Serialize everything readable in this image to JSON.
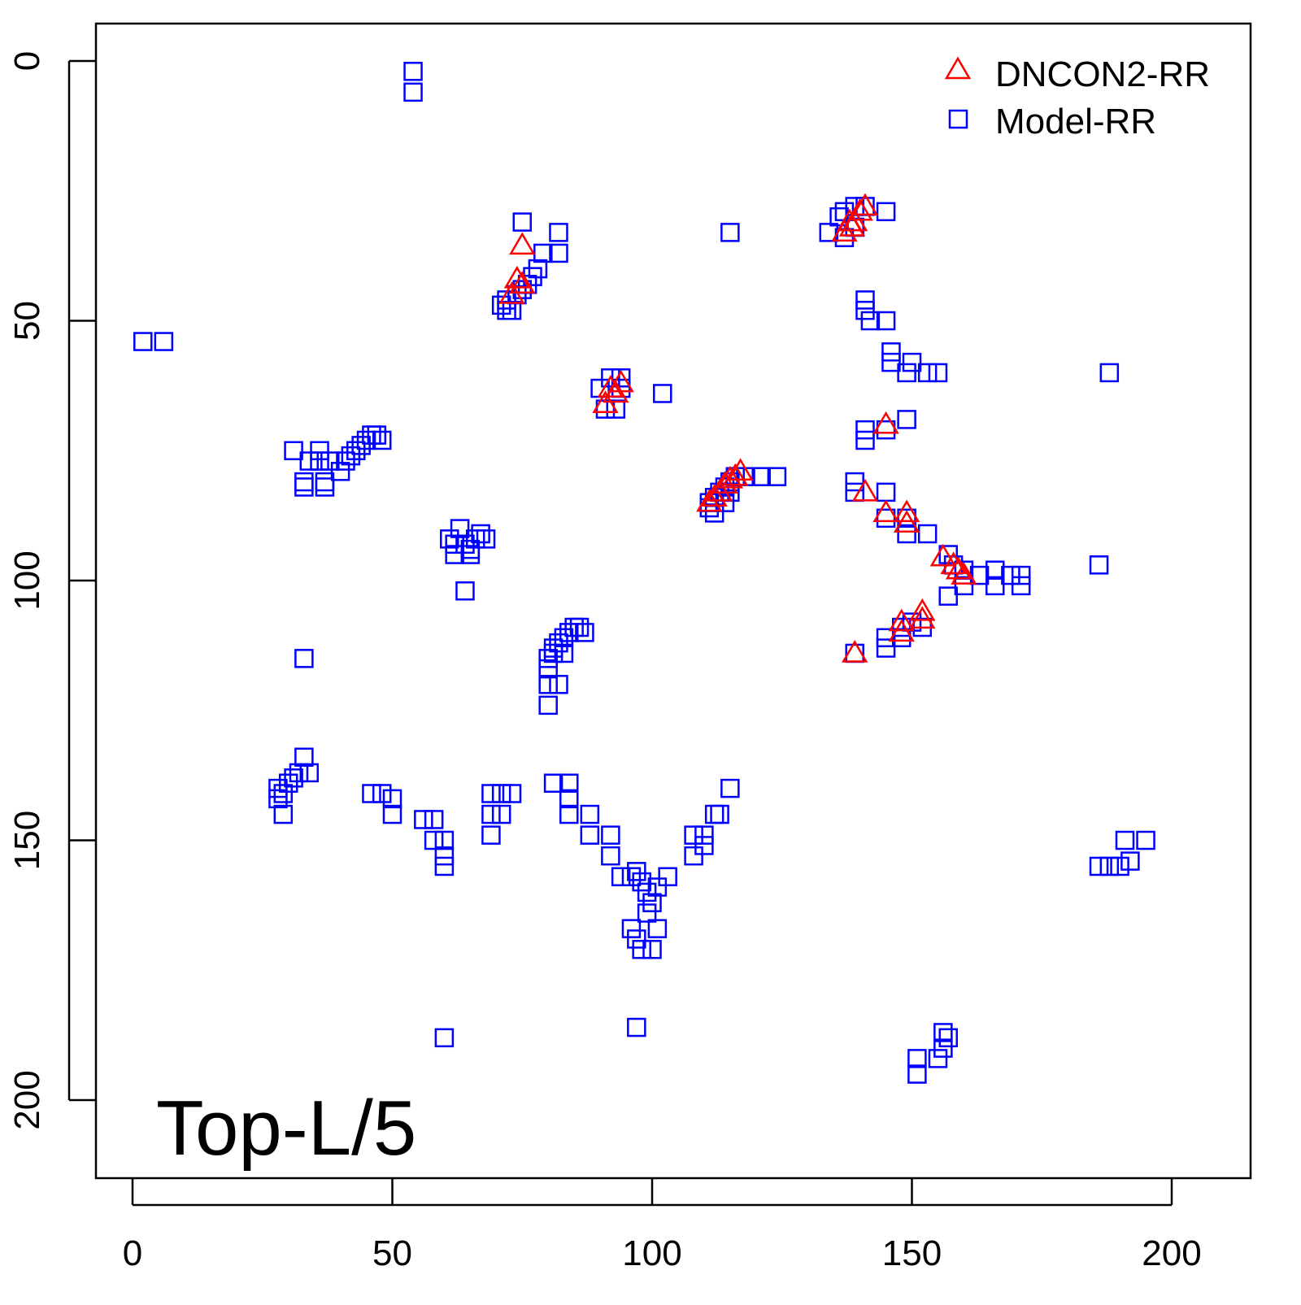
{
  "chart_data": {
    "type": "scatter",
    "title": "",
    "annotation": "Top-L/5",
    "xlabel": "",
    "ylabel": "",
    "xlim": [
      -7,
      215
    ],
    "ylim": [
      215,
      -7
    ],
    "y_inverted": true,
    "xticks": [
      0,
      50,
      100,
      150,
      200
    ],
    "yticks": [
      0,
      50,
      100,
      150,
      200
    ],
    "grid": false,
    "legend_position": "top-right",
    "series": [
      {
        "name": "DNCON2-RR",
        "marker": "triangle",
        "color": "#ff0000",
        "points": [
          [
            75,
            35.5
          ],
          [
            74,
            42
          ],
          [
            73,
            45
          ],
          [
            75,
            43
          ],
          [
            137,
            33
          ],
          [
            138,
            31
          ],
          [
            140,
            29
          ],
          [
            141,
            28
          ],
          [
            139,
            31
          ],
          [
            138.5,
            32
          ],
          [
            91,
            66
          ],
          [
            92,
            63
          ],
          [
            93,
            64
          ],
          [
            94,
            62
          ],
          [
            145,
            70
          ],
          [
            111,
            85
          ],
          [
            112,
            84
          ],
          [
            113,
            83
          ],
          [
            114,
            81.5
          ],
          [
            115,
            80.5
          ],
          [
            116,
            80
          ],
          [
            117,
            79
          ],
          [
            141,
            83
          ],
          [
            145,
            87
          ],
          [
            149,
            87
          ],
          [
            149,
            89
          ],
          [
            156,
            95.5
          ],
          [
            158,
            97
          ],
          [
            159,
            98
          ],
          [
            160,
            99
          ],
          [
            148,
            108
          ],
          [
            148,
            110
          ],
          [
            152,
            106
          ],
          [
            152,
            107.5
          ],
          [
            139,
            114
          ]
        ]
      },
      {
        "name": "Model-RR",
        "marker": "square",
        "color": "#0000ff",
        "points": [
          [
            54,
            2
          ],
          [
            54,
            6
          ],
          [
            2,
            54
          ],
          [
            6,
            54
          ],
          [
            75,
            31
          ],
          [
            82,
            33
          ],
          [
            82,
            37
          ],
          [
            79,
            37
          ],
          [
            78,
            40
          ],
          [
            77,
            41.5
          ],
          [
            76,
            43
          ],
          [
            75,
            44
          ],
          [
            74,
            45
          ],
          [
            72,
            46
          ],
          [
            71,
            47
          ],
          [
            72,
            48
          ],
          [
            73,
            48
          ],
          [
            115,
            33
          ],
          [
            134,
            33
          ],
          [
            136,
            30
          ],
          [
            137,
            29
          ],
          [
            139,
            28
          ],
          [
            141,
            28
          ],
          [
            145,
            29
          ],
          [
            137,
            34
          ],
          [
            139,
            32
          ],
          [
            141,
            46
          ],
          [
            141,
            48
          ],
          [
            142,
            50
          ],
          [
            145,
            50
          ],
          [
            146,
            56
          ],
          [
            146,
            58
          ],
          [
            150,
            58
          ],
          [
            149,
            60
          ],
          [
            153,
            60
          ],
          [
            155,
            60
          ],
          [
            188,
            60
          ],
          [
            90,
            63
          ],
          [
            92,
            61
          ],
          [
            94,
            61
          ],
          [
            94,
            63
          ],
          [
            93,
            67
          ],
          [
            91,
            67
          ],
          [
            102,
            64
          ],
          [
            141,
            71
          ],
          [
            141,
            73
          ],
          [
            145,
            71
          ],
          [
            149,
            69
          ],
          [
            31,
            75
          ],
          [
            36,
            75
          ],
          [
            36,
            77
          ],
          [
            34,
            77
          ],
          [
            38,
            77
          ],
          [
            40,
            79
          ],
          [
            41,
            77
          ],
          [
            42,
            76
          ],
          [
            43,
            75
          ],
          [
            44,
            74
          ],
          [
            45,
            73
          ],
          [
            46,
            72
          ],
          [
            47,
            72
          ],
          [
            48,
            73
          ],
          [
            33,
            81
          ],
          [
            37,
            81
          ],
          [
            33,
            82
          ],
          [
            37,
            82
          ],
          [
            139,
            81
          ],
          [
            139,
            83
          ],
          [
            145,
            83
          ],
          [
            111,
            86
          ],
          [
            111,
            85
          ],
          [
            112,
            84
          ],
          [
            113,
            83
          ],
          [
            114,
            82
          ],
          [
            115,
            81
          ],
          [
            116,
            80
          ],
          [
            118,
            80
          ],
          [
            121,
            80
          ],
          [
            124,
            80
          ],
          [
            112,
            87
          ],
          [
            114,
            85
          ],
          [
            115,
            83
          ],
          [
            145,
            88
          ],
          [
            149,
            88
          ],
          [
            149,
            91
          ],
          [
            153,
            91
          ],
          [
            61,
            92
          ],
          [
            62,
            93
          ],
          [
            63,
            90
          ],
          [
            64,
            93
          ],
          [
            65,
            94
          ],
          [
            66,
            92
          ],
          [
            67,
            91
          ],
          [
            68,
            92
          ],
          [
            62,
            95
          ],
          [
            65,
            95
          ],
          [
            64,
            102
          ],
          [
            157,
            95
          ],
          [
            158,
            97
          ],
          [
            160,
            98
          ],
          [
            163,
            99
          ],
          [
            166,
            98
          ],
          [
            169,
            99
          ],
          [
            171,
            99
          ],
          [
            171,
            101
          ],
          [
            166,
            101
          ],
          [
            160,
            101
          ],
          [
            157,
            103
          ],
          [
            186,
            97
          ],
          [
            80,
            115
          ],
          [
            80,
            117
          ],
          [
            81,
            113
          ],
          [
            82,
            112
          ],
          [
            83,
            111
          ],
          [
            84,
            110
          ],
          [
            85,
            109
          ],
          [
            86,
            109
          ],
          [
            87,
            110
          ],
          [
            80,
            120
          ],
          [
            82,
            120
          ],
          [
            80,
            124
          ],
          [
            81,
            114
          ],
          [
            83,
            114
          ],
          [
            33,
            115
          ],
          [
            145,
            111
          ],
          [
            145,
            113
          ],
          [
            148,
            109
          ],
          [
            148,
            111
          ],
          [
            150,
            108
          ],
          [
            152,
            109
          ],
          [
            139,
            114
          ],
          [
            28,
            140
          ],
          [
            29,
            141
          ],
          [
            30,
            139
          ],
          [
            31,
            138
          ],
          [
            32,
            137
          ],
          [
            33,
            134
          ],
          [
            28,
            142
          ],
          [
            29,
            145
          ],
          [
            34,
            137
          ],
          [
            46,
            141
          ],
          [
            48,
            141
          ],
          [
            50,
            142
          ],
          [
            50,
            145
          ],
          [
            56,
            146
          ],
          [
            58,
            146
          ],
          [
            58,
            150
          ],
          [
            60,
            150
          ],
          [
            60,
            153
          ],
          [
            60,
            155
          ],
          [
            60,
            188
          ],
          [
            69,
            141
          ],
          [
            71,
            141
          ],
          [
            73,
            141
          ],
          [
            69,
            145
          ],
          [
            71,
            145
          ],
          [
            69,
            149
          ],
          [
            81,
            139
          ],
          [
            84,
            139
          ],
          [
            84,
            142
          ],
          [
            84,
            145
          ],
          [
            88,
            145
          ],
          [
            88,
            149
          ],
          [
            92,
            149
          ],
          [
            92,
            153
          ],
          [
            94,
            157
          ],
          [
            96,
            157
          ],
          [
            97,
            156
          ],
          [
            98,
            158
          ],
          [
            99,
            160
          ],
          [
            100,
            162
          ],
          [
            99,
            164
          ],
          [
            101,
            167
          ],
          [
            96,
            167
          ],
          [
            97,
            169
          ],
          [
            98,
            171
          ],
          [
            100,
            171
          ],
          [
            103,
            157
          ],
          [
            101,
            159
          ],
          [
            108,
            149
          ],
          [
            108,
            153
          ],
          [
            110,
            151
          ],
          [
            110,
            149
          ],
          [
            112,
            145
          ],
          [
            113,
            145
          ],
          [
            115,
            140
          ],
          [
            97,
            186
          ],
          [
            151,
            195
          ],
          [
            151,
            192
          ],
          [
            155,
            192
          ],
          [
            156,
            190
          ],
          [
            157,
            188
          ],
          [
            156,
            187
          ],
          [
            186,
            155
          ],
          [
            188,
            155
          ],
          [
            190,
            155
          ],
          [
            192,
            154
          ],
          [
            191,
            150
          ],
          [
            195,
            150
          ]
        ]
      }
    ]
  }
}
